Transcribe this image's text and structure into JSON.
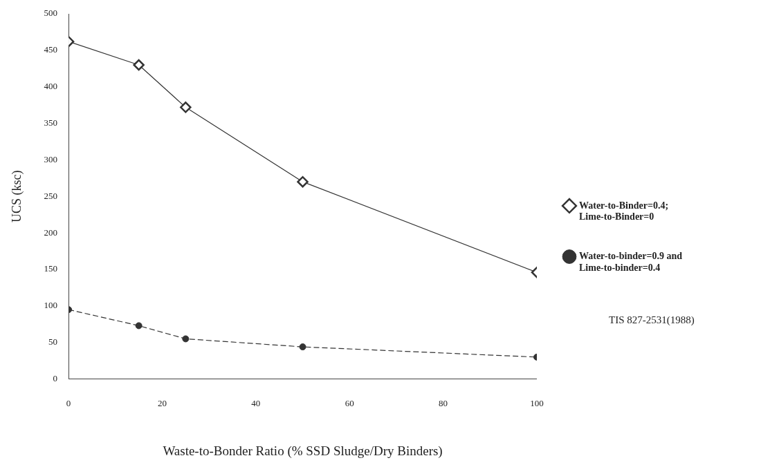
{
  "chart_data": {
    "type": "line",
    "xlabel": "Waste-to-Bonder Ratio (% SSD Sludge/Dry Binders)",
    "ylabel": "UCS (ksc)",
    "x": [
      0,
      15,
      25,
      50,
      100
    ],
    "series": [
      {
        "name": "Water-to-Binder=0.4; Lime-to-Binder=0",
        "color": "#333333",
        "marker": "diamond",
        "line_style": "solid",
        "values": [
          462,
          430,
          372,
          270,
          146
        ]
      },
      {
        "name": "Water-to-binder=0.9 and Lime-to-binder=0.4",
        "color": "#333333",
        "marker": "circle",
        "line_style": "dashed",
        "values": [
          95,
          73,
          55,
          44,
          30
        ]
      }
    ],
    "xlim": [
      0,
      100
    ],
    "xticks": [
      0,
      20,
      40,
      60,
      80,
      100
    ],
    "ylim": [
      0,
      500
    ],
    "yticks": [
      0,
      50,
      100,
      150,
      200,
      250,
      300,
      350,
      400,
      450,
      500
    ],
    "grid": false,
    "legend": "right",
    "annotations": [
      "TIS 827-2531(1988)"
    ]
  }
}
